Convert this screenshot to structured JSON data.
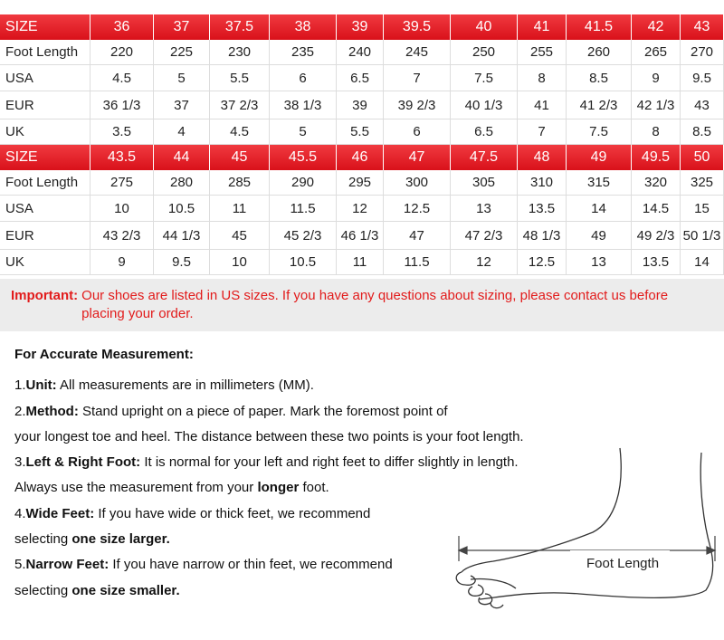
{
  "tables": [
    {
      "header": [
        "SIZE",
        "36",
        "37",
        "37.5",
        "38",
        "39",
        "39.5",
        "40",
        "41",
        "41.5",
        "42",
        "43"
      ],
      "rows": [
        [
          "Foot Length",
          "220",
          "225",
          "230",
          "235",
          "240",
          "245",
          "250",
          "255",
          "260",
          "265",
          "270"
        ],
        [
          "USA",
          "4.5",
          "5",
          "5.5",
          "6",
          "6.5",
          "7",
          "7.5",
          "8",
          "8.5",
          "9",
          "9.5"
        ],
        [
          "EUR",
          "36 1/3",
          "37",
          "37 2/3",
          "38 1/3",
          "39",
          "39 2/3",
          "40 1/3",
          "41",
          "41 2/3",
          "42 1/3",
          "43"
        ],
        [
          "UK",
          "3.5",
          "4",
          "4.5",
          "5",
          "5.5",
          "6",
          "6.5",
          "7",
          "7.5",
          "8",
          "8.5"
        ]
      ]
    },
    {
      "header": [
        "SIZE",
        "43.5",
        "44",
        "45",
        "45.5",
        "46",
        "47",
        "47.5",
        "48",
        "49",
        "49.5",
        "50"
      ],
      "rows": [
        [
          "Foot Length",
          "275",
          "280",
          "285",
          "290",
          "295",
          "300",
          "305",
          "310",
          "315",
          "320",
          "325"
        ],
        [
          "USA",
          "10",
          "10.5",
          "11",
          "11.5",
          "12",
          "12.5",
          "13",
          "13.5",
          "14",
          "14.5",
          "15"
        ],
        [
          "EUR",
          "43 2/3",
          "44 1/3",
          "45",
          "45 2/3",
          "46 1/3",
          "47",
          "47 2/3",
          "48 1/3",
          "49",
          "49 2/3",
          "50 1/3"
        ],
        [
          "UK",
          "9",
          "9.5",
          "10",
          "10.5",
          "11",
          "11.5",
          "12",
          "12.5",
          "13",
          "13.5",
          "14"
        ]
      ]
    }
  ],
  "important": {
    "label": "Important:",
    "text": "Our shoes are listed in US sizes. If you have any questions about sizing, please contact us before placing your order."
  },
  "measurement": {
    "title": "For Accurate Measurement:",
    "lines": [
      [
        {
          "text": "1."
        },
        {
          "text": "Unit:",
          "bold": true
        },
        {
          "text": " All measurements are in millimeters (MM)."
        }
      ],
      [
        {
          "text": "2."
        },
        {
          "text": "Method:",
          "bold": true
        },
        {
          "text": " Stand upright on a piece of paper. Mark the foremost point of"
        }
      ],
      [
        {
          "text": "your longest toe and heel. The distance between these two points is your foot length."
        }
      ],
      [
        {
          "text": "3."
        },
        {
          "text": "Left & Right Foot:",
          "bold": true
        },
        {
          "text": " It is normal for your left and right feet to differ slightly in length."
        }
      ],
      [
        {
          "text": "Always use the measurement from your "
        },
        {
          "text": "longer",
          "bold": true
        },
        {
          "text": " foot."
        }
      ],
      [
        {
          "text": "4."
        },
        {
          "text": "Wide Feet:",
          "bold": true
        },
        {
          "text": " If you have wide or thick feet, we recommend"
        }
      ],
      [
        {
          "text": "selecting "
        },
        {
          "text": "one size larger.",
          "bold": true
        }
      ],
      [
        {
          "text": "5."
        },
        {
          "text": "Narrow Feet:",
          "bold": true
        },
        {
          "text": " If you have narrow or thin feet, we recommend"
        }
      ],
      [
        {
          "text": "selecting "
        },
        {
          "text": "one size smaller.",
          "bold": true
        }
      ]
    ]
  },
  "figure": {
    "label": "Foot Length"
  }
}
